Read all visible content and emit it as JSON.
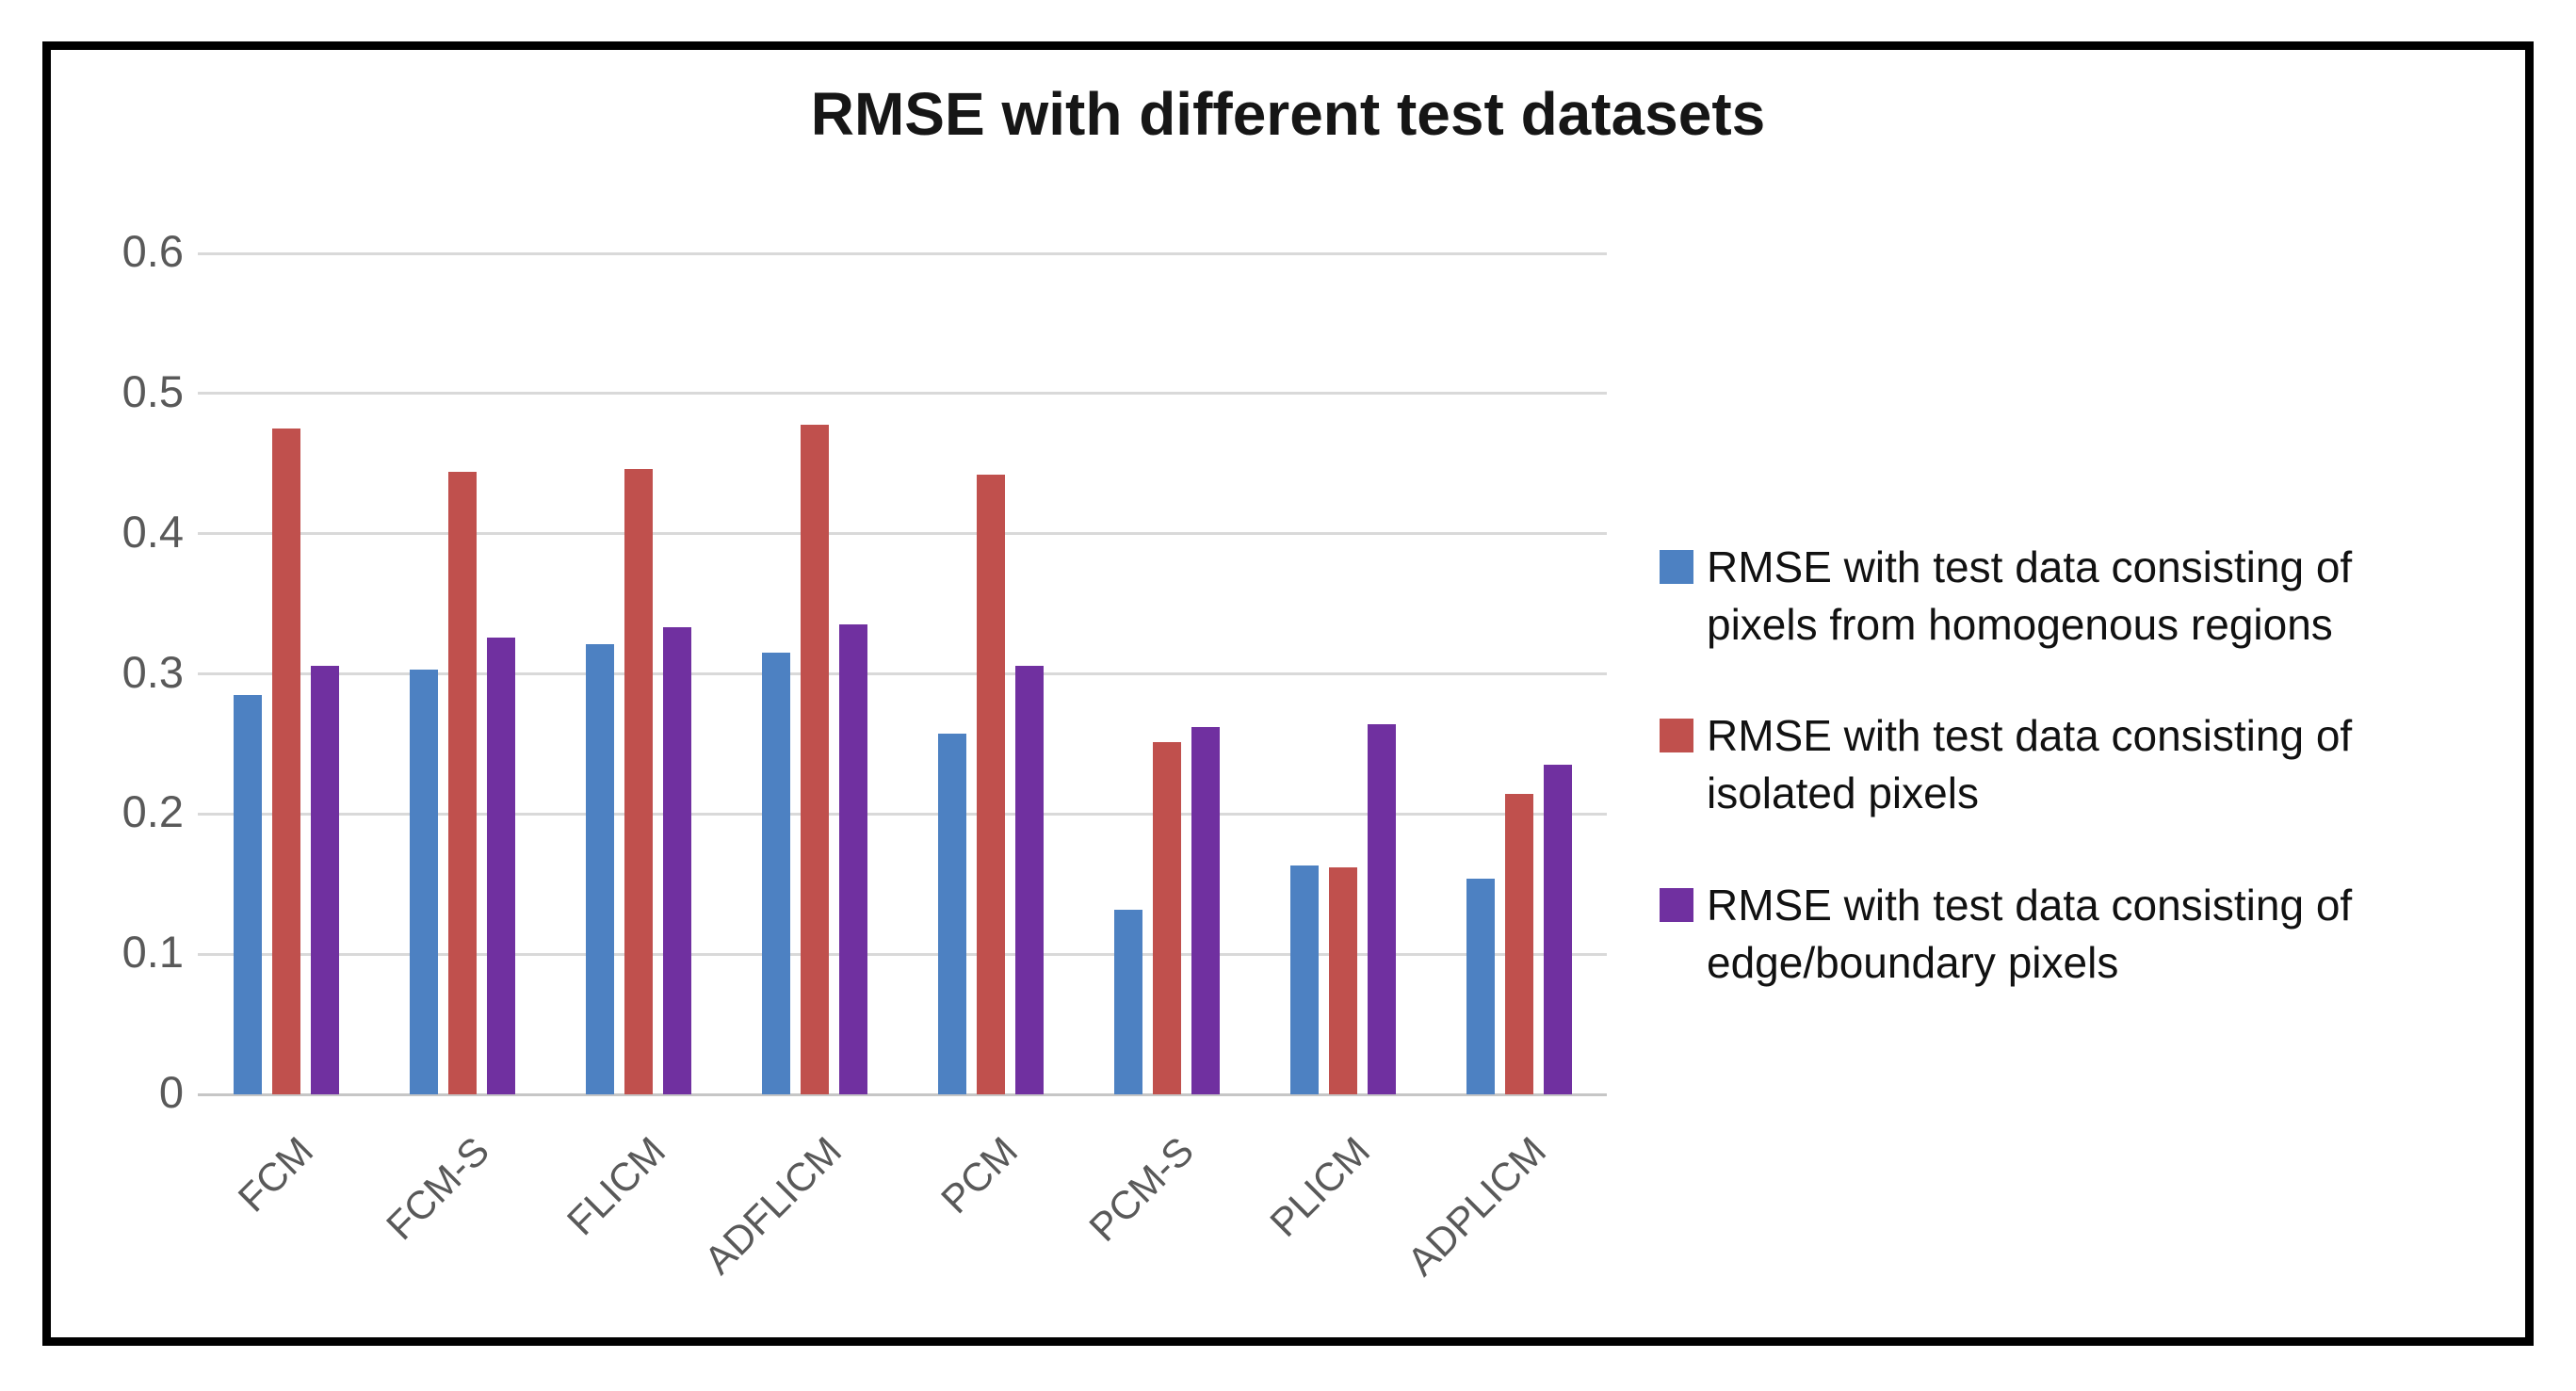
{
  "chart_data": {
    "type": "bar",
    "title": "RMSE with different test datasets",
    "categories": [
      "FCM",
      "FCM-S",
      "FLICM",
      "ADFLICM",
      "PCM",
      "PCM-S",
      "PLICM",
      "ADPLICM"
    ],
    "series": [
      {
        "name": "RMSE with test data consisting of pixels from homogenous regions",
        "color": "#4D81C2",
        "values": [
          0.285,
          0.303,
          0.321,
          0.315,
          0.257,
          0.132,
          0.163,
          0.154
        ]
      },
      {
        "name": "RMSE with test data consisting of isolated pixels",
        "color": "#C0504D",
        "values": [
          0.475,
          0.444,
          0.446,
          0.478,
          0.442,
          0.251,
          0.162,
          0.214
        ]
      },
      {
        "name": "RMSE with test data consisting of edge/boundary pixels",
        "color": "#7030A0",
        "values": [
          0.306,
          0.326,
          0.333,
          0.335,
          0.306,
          0.262,
          0.264,
          0.235
        ]
      }
    ],
    "xlabel": "",
    "ylabel": "",
    "ylim": [
      0,
      0.6
    ],
    "ytick_step": 0.1,
    "ytick_labels": [
      "0",
      "0.1",
      "0.2",
      "0.3",
      "0.4",
      "0.5",
      "0.6"
    ],
    "grid": true,
    "legend_position": "right"
  },
  "colors": {
    "grid_line": "#D9D9D9",
    "axis_line": "#C6C6C6",
    "tick_label": "#595959",
    "title_text": "#161616",
    "legend_text": "#111111",
    "border": "#000000",
    "background": "#FFFFFF"
  }
}
